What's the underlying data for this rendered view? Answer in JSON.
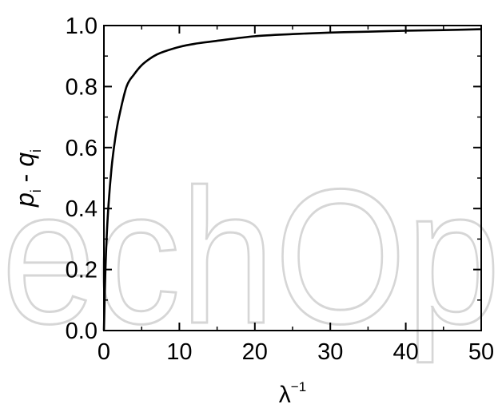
{
  "chart_data": {
    "type": "line",
    "xlabel": {
      "base": "λ",
      "sup": "−1"
    },
    "ylabel": {
      "p": "p",
      "p_sub": "i",
      "sep": " - ",
      "q": "q",
      "q_sub": "i"
    },
    "xlim": [
      0,
      50
    ],
    "ylim": [
      0,
      1.0
    ],
    "x_ticks": [
      0,
      10,
      20,
      30,
      40,
      50
    ],
    "x_tick_labels": [
      "0",
      "10",
      "20",
      "30",
      "40",
      "50"
    ],
    "y_ticks": [
      0,
      0.2,
      0.4,
      0.6,
      0.8,
      1.0
    ],
    "y_tick_labels": [
      "0.0",
      "0.2",
      "0.4",
      "0.6",
      "0.8",
      "1.0"
    ],
    "grid": false,
    "series": [
      {
        "color": "#000000",
        "x": [
          0,
          0.2,
          0.5,
          1,
          1.5,
          2,
          3,
          4,
          5,
          6,
          7,
          8,
          10,
          12,
          15,
          20,
          25,
          30,
          35,
          40,
          45,
          50
        ],
        "y": [
          0,
          0.2,
          0.37,
          0.53,
          0.63,
          0.7,
          0.8,
          0.84,
          0.87,
          0.89,
          0.905,
          0.915,
          0.93,
          0.94,
          0.95,
          0.965,
          0.972,
          0.977,
          0.98,
          0.983,
          0.985,
          0.988
        ]
      }
    ],
    "watermark": "echOp"
  }
}
